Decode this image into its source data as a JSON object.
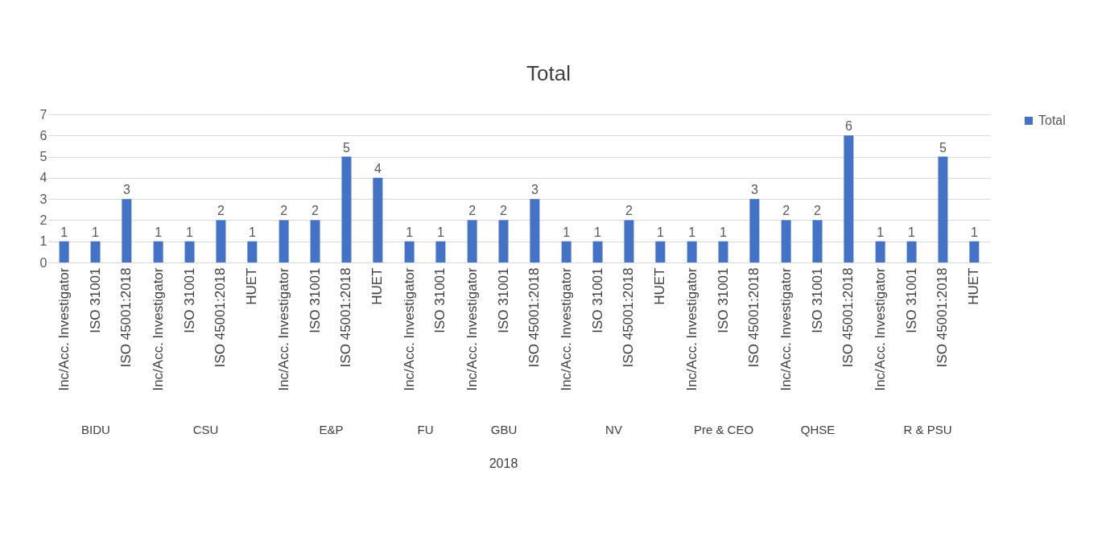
{
  "chart_data": [
    {
      "type": "bar",
      "xlabel": "BIDU",
      "categories": [
        "Inc/Acc. Investigator",
        "ISO 31001",
        "ISO 45001:2018"
      ],
      "series": [
        {
          "color": "#4472c4",
          "values": [
            1,
            1,
            3
          ]
        }
      ],
      "ylim": [
        0,
        7
      ],
      "yticks": [
        0,
        1,
        2,
        3,
        4,
        5,
        6,
        7
      ],
      "grid": "y",
      "data_labels": true
    },
    {
      "type": "bar",
      "xlabel": "CSU",
      "categories": [
        "Inc/Acc. Investigator",
        "ISO 31001",
        "ISO 45001:2018",
        "HUET"
      ],
      "series": [
        {
          "color": "#4472c4",
          "values": [
            1,
            1,
            2,
            1
          ]
        }
      ],
      "ylim": [
        0,
        7
      ],
      "yticks": [
        0,
        1,
        2,
        3,
        4,
        5,
        6,
        7
      ],
      "grid": "y",
      "data_labels": true,
      "tick_labels": "x"
    },
    {
      "type": "bar",
      "xlabel": "E&P",
      "categories": [
        "Inc/Acc. Investigator",
        "ISO 31001",
        "ISO 45001:2018",
        "HUET"
      ],
      "series": [
        {
          "color": "#4472c4",
          "values": [
            2,
            2,
            5,
            4
          ]
        }
      ],
      "ylim": [
        0,
        7
      ],
      "yticks": [
        0,
        1,
        2,
        3,
        4,
        5,
        6,
        7
      ],
      "grid": "y",
      "data_labels": true,
      "tick_labels": "x"
    },
    {
      "type": "bar",
      "xlabel": "FU",
      "categories": [
        "Inc/Acc. Investigator",
        "ISO 31001"
      ],
      "series": [
        {
          "color": "#4472c4",
          "values": [
            1,
            1
          ]
        }
      ],
      "ylim": [
        0,
        7
      ],
      "yticks": [
        0,
        1,
        2,
        3,
        4,
        5,
        6,
        7
      ],
      "grid": "y",
      "data_labels": true,
      "tick_labels": "x"
    },
    {
      "type": "bar",
      "xlabel": "GBU",
      "categories": [
        "Inc/Acc. Investigator",
        "ISO 31001",
        "ISO 45001:2018"
      ],
      "series": [
        {
          "color": "#4472c4",
          "values": [
            2,
            2,
            3
          ]
        }
      ],
      "ylim": [
        0,
        7
      ],
      "yticks": [
        0,
        1,
        2,
        3,
        4,
        5,
        6,
        7
      ],
      "grid": "y",
      "data_labels": true,
      "tick_labels": "x",
      "annotations": [
        "2018"
      ]
    },
    {
      "type": "bar",
      "title": "Total",
      "xlabel": "NV",
      "categories": [
        "Inc/Acc. Investigator",
        "ISO 31001",
        "ISO 45001:2018",
        "HUET"
      ],
      "series": [
        {
          "color": "#4472c4",
          "values": [
            1,
            1,
            2,
            1
          ]
        }
      ],
      "ylim": [
        0,
        7
      ],
      "yticks": [
        0,
        1,
        2,
        3,
        4,
        5,
        6,
        7
      ],
      "grid": "y",
      "data_labels": true,
      "tick_labels": "x"
    },
    {
      "type": "bar",
      "xlabel": "Pre & CEO",
      "categories": [
        "Inc/Acc. Investigator",
        "ISO 31001",
        "ISO 45001:2018"
      ],
      "series": [
        {
          "color": "#4472c4",
          "values": [
            1,
            1,
            3
          ]
        }
      ],
      "ylim": [
        0,
        7
      ],
      "yticks": [
        0,
        1,
        2,
        3,
        4,
        5,
        6,
        7
      ],
      "grid": "y",
      "data_labels": true,
      "tick_labels": "x"
    },
    {
      "type": "bar",
      "xlabel": "QHSE",
      "categories": [
        "Inc/Acc. Investigator",
        "ISO 31001",
        "ISO 45001:2018"
      ],
      "series": [
        {
          "color": "#4472c4",
          "values": [
            2,
            2,
            6
          ]
        }
      ],
      "ylim": [
        0,
        7
      ],
      "yticks": [
        0,
        1,
        2,
        3,
        4,
        5,
        6,
        7
      ],
      "grid": "y",
      "data_labels": true,
      "tick_labels": "x"
    },
    {
      "type": "bar",
      "xlabel": "R & PSU",
      "categories": [
        "Inc/Acc. Investigator",
        "ISO 31001",
        "ISO 45001:2018",
        "HUET"
      ],
      "series": [
        {
          "name": "Total",
          "color": "#4472c4",
          "values": [
            1,
            1,
            5,
            1
          ]
        }
      ],
      "ylim": [
        0,
        7
      ],
      "yticks": [
        0,
        1,
        2,
        3,
        4,
        5,
        6,
        7
      ],
      "grid": "y",
      "data_labels": true,
      "tick_labels": "x",
      "legend": "right"
    }
  ]
}
